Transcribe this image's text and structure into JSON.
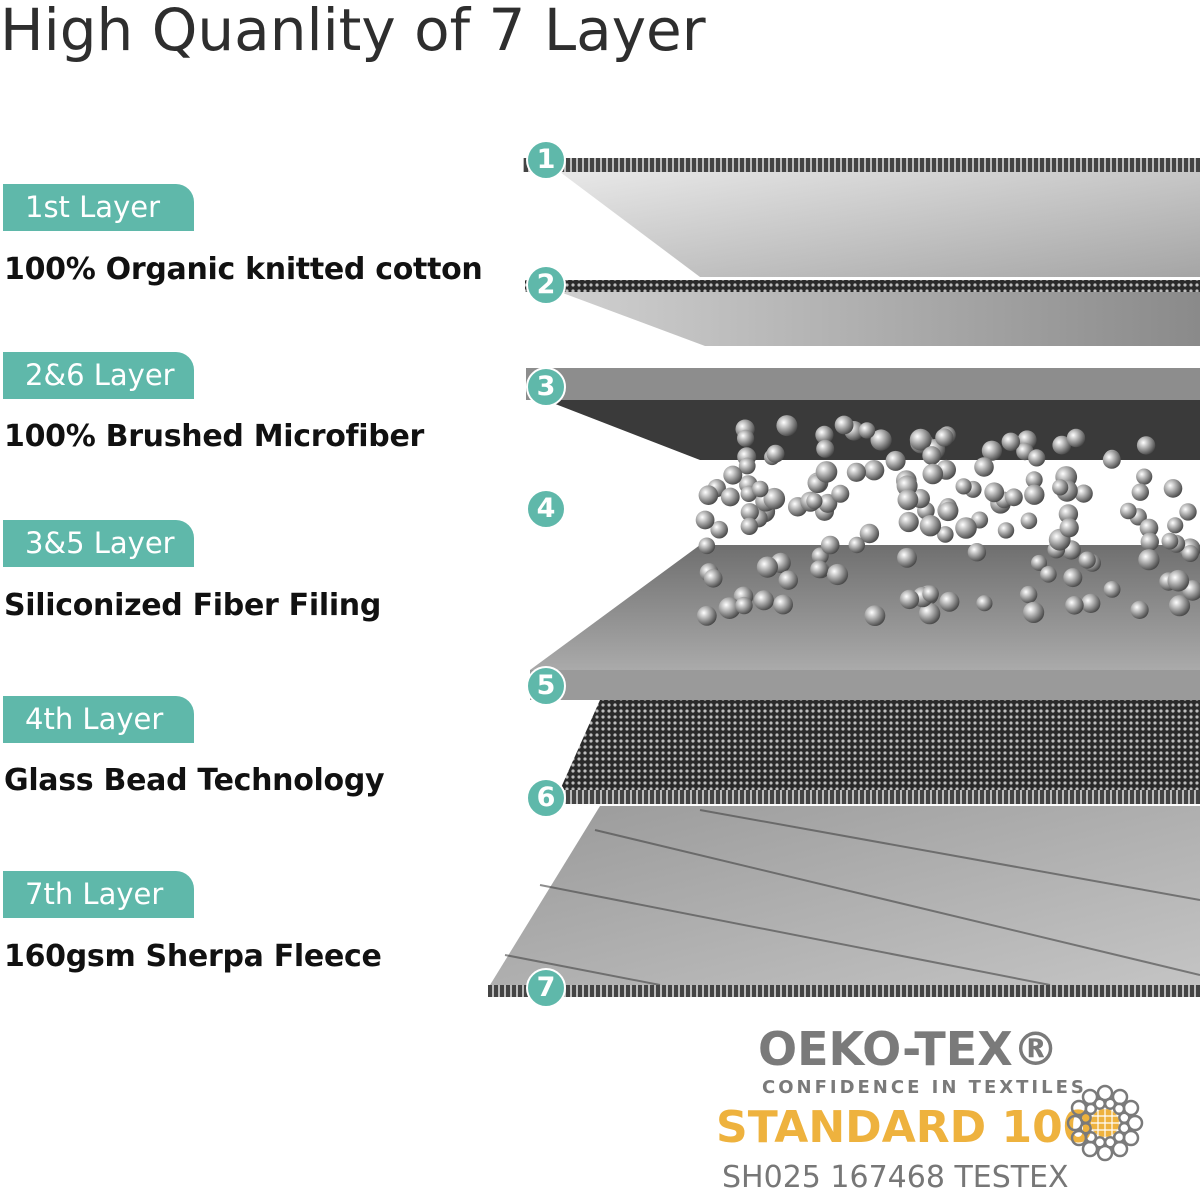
{
  "title": "High Quanlity of 7 Layer",
  "layers_info": [
    {
      "badge": "1st Layer",
      "description": "100% Organic knitted cotton"
    },
    {
      "badge": "2&6 Layer",
      "description": "100% Brushed Microfiber"
    },
    {
      "badge": "3&5 Layer",
      "description": "Siliconized Fiber Filing"
    },
    {
      "badge": "4th Layer",
      "description": "Glass Bead Technology"
    },
    {
      "badge": "7th Layer",
      "description": "160gsm Sherpa Fleece"
    }
  ],
  "layer_numbers": [
    "1",
    "2",
    "3",
    "4",
    "5",
    "6",
    "7"
  ],
  "certification": {
    "brand": "OEKO-TEX®",
    "tagline": "CONFIDENCE IN TEXTILES",
    "standard": "STANDARD 100",
    "certificate": "SH025 167468 TESTEX"
  },
  "colors": {
    "accent": "#5fb8aa",
    "standard": "#eeb23e",
    "logo_gray": "#7a7a7a"
  }
}
